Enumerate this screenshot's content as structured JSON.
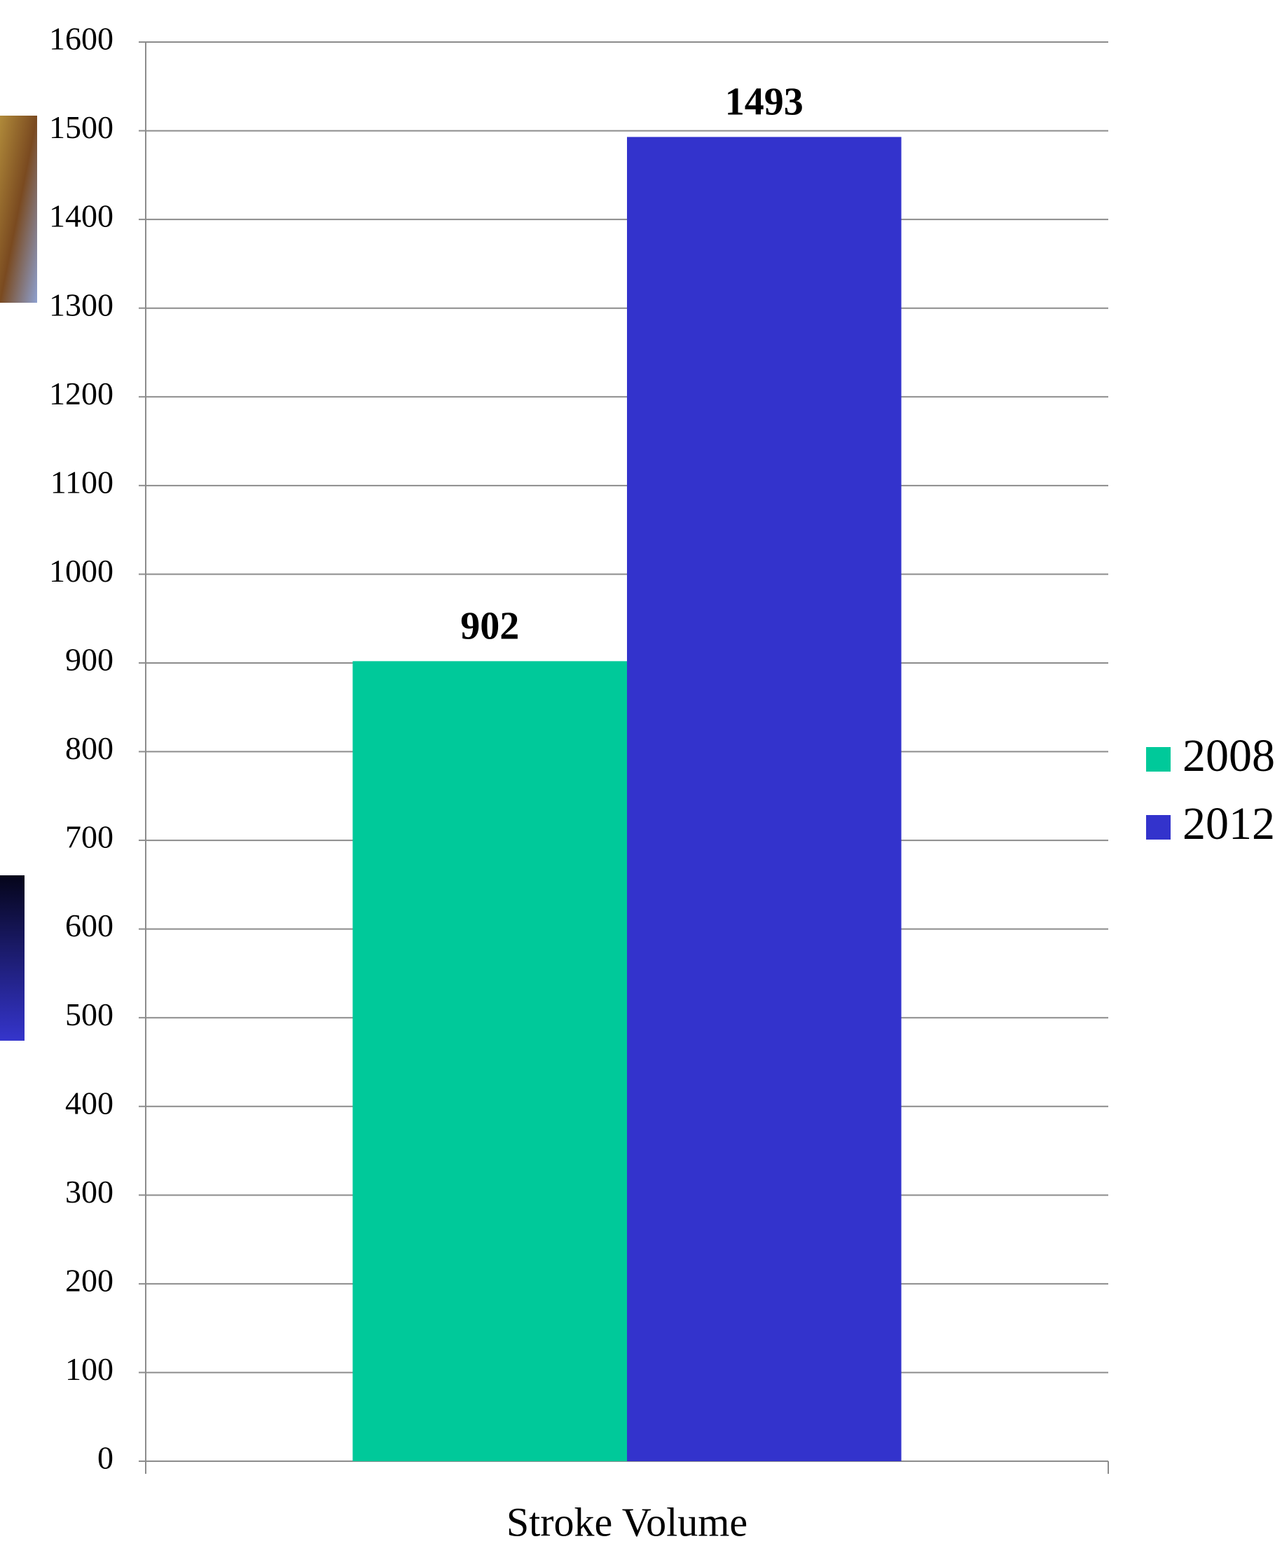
{
  "chart_data": {
    "type": "bar",
    "categories": [
      "Stroke Volume"
    ],
    "series": [
      {
        "name": "2008",
        "color": "#00c99a",
        "values": [
          902
        ]
      },
      {
        "name": "2012",
        "color": "#3333cc",
        "values": [
          1493
        ]
      }
    ],
    "ylim": [
      0,
      1600
    ],
    "yticks": [
      0,
      100,
      200,
      300,
      400,
      500,
      600,
      700,
      800,
      900,
      1000,
      1100,
      1200,
      1300,
      1400,
      1500,
      1600
    ],
    "grid": true,
    "legend": "right"
  }
}
